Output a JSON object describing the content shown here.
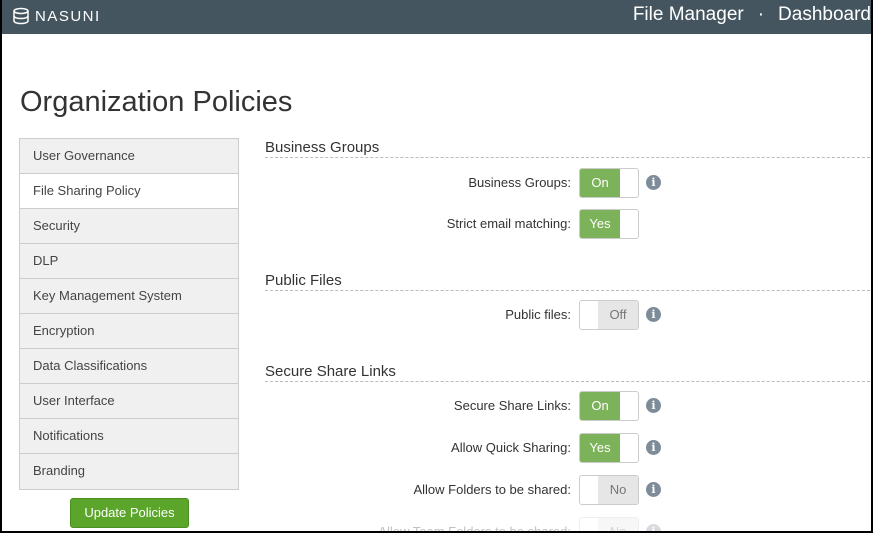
{
  "header": {
    "brand": "NASUNI",
    "nav": [
      "File Manager",
      "·",
      "Dashboard"
    ]
  },
  "page_title": "Organization Policies",
  "sidebar": {
    "items": [
      {
        "label": "User Governance",
        "active": false
      },
      {
        "label": "File Sharing Policy",
        "active": true
      },
      {
        "label": "Security",
        "active": false
      },
      {
        "label": "DLP",
        "active": false
      },
      {
        "label": "Key Management System",
        "active": false
      },
      {
        "label": "Encryption",
        "active": false
      },
      {
        "label": "Data Classifications",
        "active": false
      },
      {
        "label": "User Interface",
        "active": false
      },
      {
        "label": "Notifications",
        "active": false
      },
      {
        "label": "Branding",
        "active": false
      }
    ],
    "update_label": "Update Policies"
  },
  "sections": [
    {
      "title": "Business Groups",
      "rows": [
        {
          "label": "Business Groups:",
          "value": "On",
          "state": "on",
          "info": true
        },
        {
          "label": "Strict email matching:",
          "value": "Yes",
          "state": "on",
          "info": false
        }
      ]
    },
    {
      "title": "Public Files",
      "rows": [
        {
          "label": "Public files:",
          "value": "Off",
          "state": "off",
          "info": true
        }
      ]
    },
    {
      "title": "Secure Share Links",
      "rows": [
        {
          "label": "Secure Share Links:",
          "value": "On",
          "state": "on",
          "info": true
        },
        {
          "label": "Allow Quick Sharing:",
          "value": "Yes",
          "state": "on",
          "info": true
        },
        {
          "label": "Allow Folders to be shared:",
          "value": "No",
          "state": "off",
          "info": true
        },
        {
          "label": "Allow Team Folders to be shared:",
          "value": "No",
          "state": "off",
          "info": true
        }
      ]
    }
  ],
  "colors": {
    "header": "#44555f",
    "toggle_on": "#7cb25a",
    "button": "#5aa52a"
  }
}
